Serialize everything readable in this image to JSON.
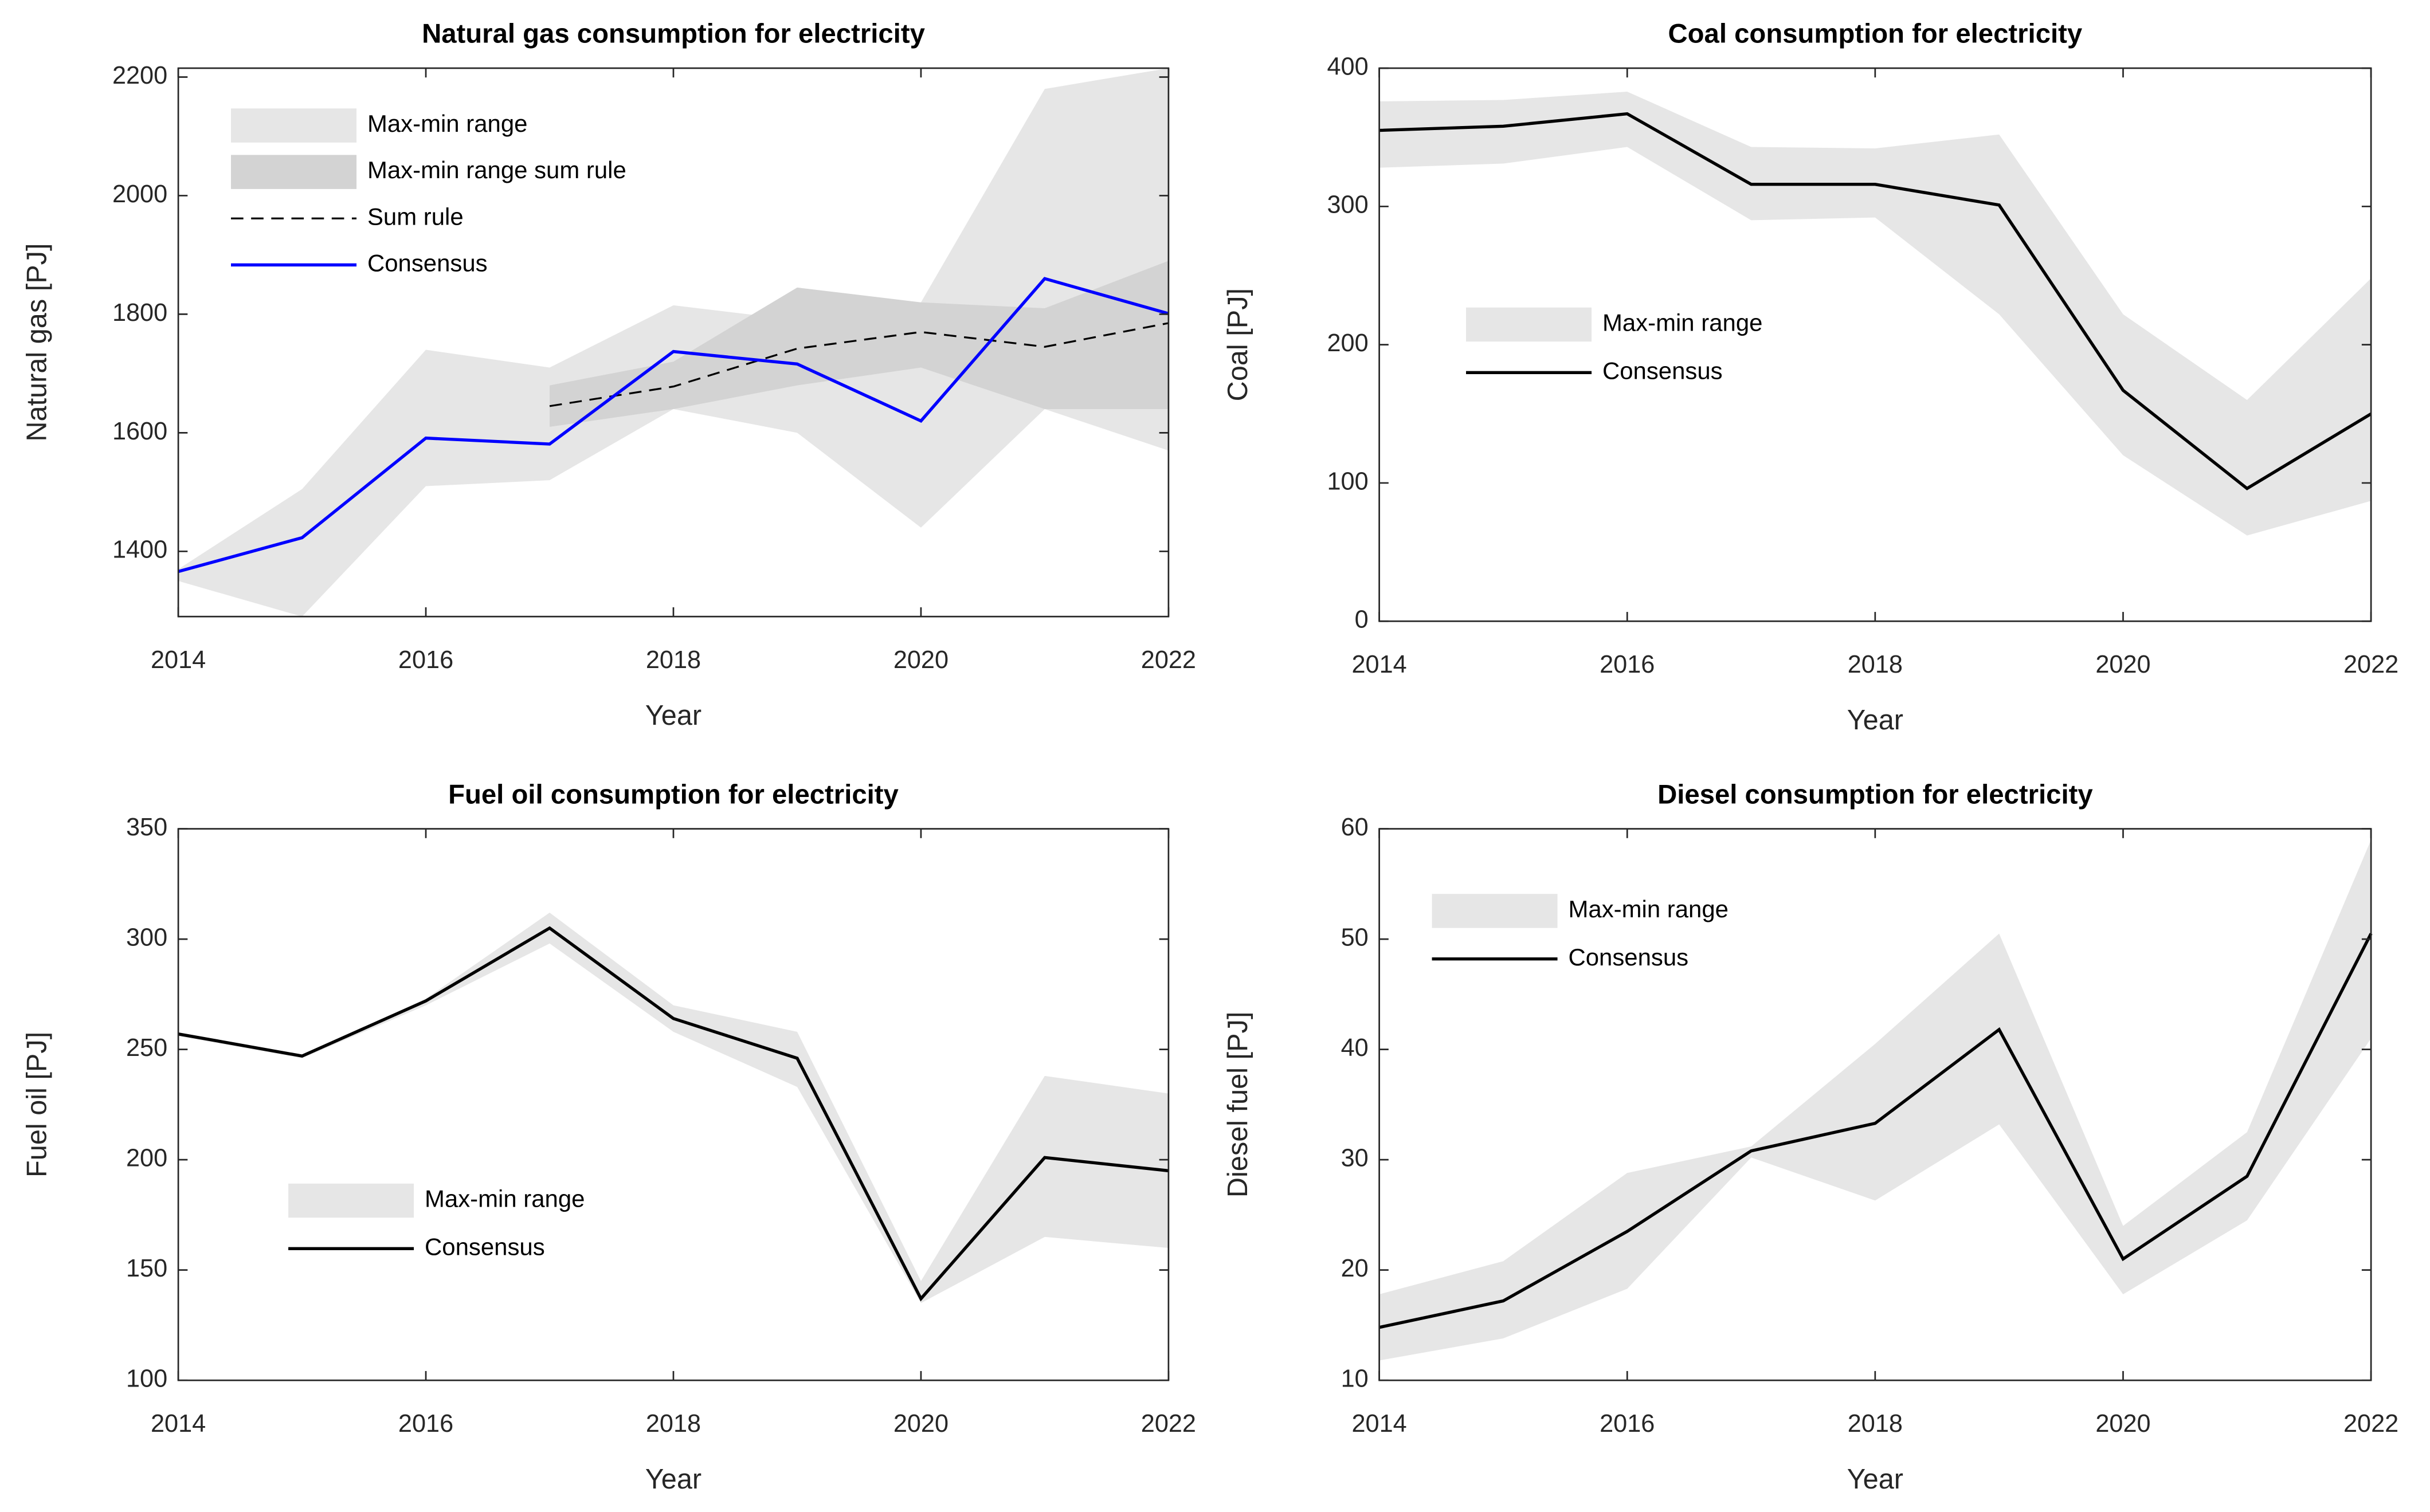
{
  "chart_data": [
    {
      "type": "line",
      "title": "Natural gas consumption for electricity",
      "xlabel": "Year",
      "ylabel": "Natural gas [PJ]",
      "x": [
        2014,
        2015,
        2016,
        2017,
        2018,
        2019,
        2020,
        2021,
        2022
      ],
      "xlim": [
        2014,
        2022
      ],
      "xticks": [
        2014,
        2016,
        2018,
        2020,
        2022
      ],
      "ylim": [
        1290,
        2215
      ],
      "yticks": [
        1400,
        1600,
        1800,
        2000,
        2200
      ],
      "legend": "northwest",
      "series": [
        {
          "name": "Max-min range",
          "kind": "band",
          "color": "#e6e6e6",
          "lower": [
            1350,
            1290,
            1510,
            1520,
            1640,
            1600,
            1440,
            1640,
            1570
          ],
          "upper": [
            1370,
            1505,
            1740,
            1710,
            1815,
            1790,
            1820,
            2180,
            2215
          ]
        },
        {
          "name": "Max-min range sum rule",
          "kind": "band",
          "color": "#d3d3d3",
          "lower": [
            null,
            null,
            null,
            1610,
            1640,
            1680,
            1710,
            1640,
            1640
          ],
          "upper": [
            null,
            null,
            null,
            1680,
            1720,
            1845,
            1820,
            1810,
            1890
          ]
        },
        {
          "name": "Sum rule",
          "kind": "line",
          "color": "#000000",
          "dash": true,
          "values": [
            null,
            null,
            null,
            1645,
            1678,
            1742,
            1770,
            1745,
            1785
          ]
        },
        {
          "name": "Consensus",
          "kind": "line",
          "color": "#0000ff",
          "values": [
            1366,
            1423,
            1591,
            1581,
            1737,
            1716,
            1620,
            1860,
            1801
          ]
        }
      ]
    },
    {
      "type": "line",
      "title": "Coal consumption for electricity",
      "xlabel": "Year",
      "ylabel": "Coal [PJ]",
      "x": [
        2014,
        2015,
        2016,
        2017,
        2018,
        2019,
        2020,
        2021,
        2022
      ],
      "xlim": [
        2014,
        2022
      ],
      "xticks": [
        2014,
        2016,
        2018,
        2020,
        2022
      ],
      "ylim": [
        0,
        400
      ],
      "yticks": [
        0,
        100,
        200,
        300,
        400
      ],
      "legend": "west",
      "series": [
        {
          "name": "Max-min range",
          "kind": "band",
          "color": "#e6e6e6",
          "lower": [
            328,
            331,
            343,
            290,
            292,
            222,
            120,
            62,
            87
          ],
          "upper": [
            376,
            377,
            383,
            343,
            342,
            352,
            222,
            160,
            248
          ]
        },
        {
          "name": "Consensus",
          "kind": "line",
          "color": "#000000",
          "values": [
            355,
            358,
            367,
            316,
            316,
            301,
            167,
            96,
            150
          ]
        }
      ]
    },
    {
      "type": "line",
      "title": "Fuel oil consumption for electricity",
      "xlabel": "Year",
      "ylabel": "Fuel oil [PJ]",
      "x": [
        2014,
        2015,
        2016,
        2017,
        2018,
        2019,
        2020,
        2021,
        2022
      ],
      "xlim": [
        2014,
        2022
      ],
      "xticks": [
        2014,
        2016,
        2018,
        2020,
        2022
      ],
      "ylim": [
        100,
        350
      ],
      "yticks": [
        100,
        150,
        200,
        250,
        300,
        350
      ],
      "legend": "southwest",
      "series": [
        {
          "name": "Max-min range",
          "kind": "band",
          "color": "#e6e6e6",
          "lower": [
            256,
            246,
            270,
            298,
            258,
            233,
            135,
            165,
            160
          ],
          "upper": [
            257,
            247,
            273,
            312,
            270,
            258,
            145,
            238,
            230
          ]
        },
        {
          "name": "Consensus",
          "kind": "line",
          "color": "#000000",
          "values": [
            257,
            247,
            272,
            305,
            264,
            246,
            137,
            201,
            195
          ]
        }
      ]
    },
    {
      "type": "line",
      "title": "Diesel consumption for electricity",
      "xlabel": "Year",
      "ylabel": "Diesel fuel [PJ]",
      "x": [
        2014,
        2015,
        2016,
        2017,
        2018,
        2019,
        2020,
        2021,
        2022
      ],
      "xlim": [
        2014,
        2022
      ],
      "xticks": [
        2014,
        2016,
        2018,
        2020,
        2022
      ],
      "ylim": [
        10,
        60
      ],
      "yticks": [
        10,
        20,
        30,
        40,
        50,
        60
      ],
      "legend": "northwest",
      "series": [
        {
          "name": "Max-min range",
          "kind": "band",
          "color": "#e6e6e6",
          "lower": [
            11.8,
            13.8,
            18.3,
            30.2,
            26.3,
            33.2,
            17.8,
            24.5,
            41
          ],
          "upper": [
            17.8,
            20.8,
            28.8,
            31.2,
            40.5,
            50.5,
            24,
            32.5,
            59
          ]
        },
        {
          "name": "Consensus",
          "kind": "line",
          "color": "#000000",
          "values": [
            14.8,
            17.2,
            23.5,
            30.8,
            33.3,
            41.8,
            21.0,
            28.5,
            50.5
          ]
        }
      ]
    }
  ]
}
